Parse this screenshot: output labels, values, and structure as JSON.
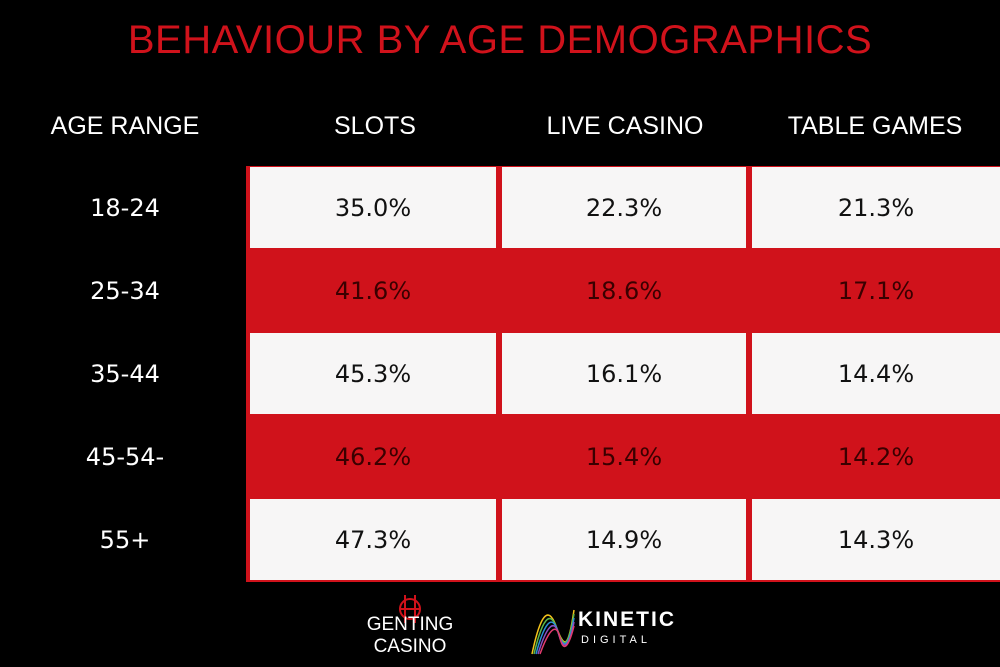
{
  "title": "BEHAVIOUR BY AGE DEMOGRAPHICS",
  "colors": {
    "accent": "#d0121b",
    "background": "#000000",
    "cell_light": "#f7f6f6"
  },
  "chart_data": {
    "type": "table",
    "title": "BEHAVIOUR BY AGE DEMOGRAPHICS",
    "columns": [
      "AGE RANGE",
      "SLOTS",
      "LIVE CASINO",
      "TABLE GAMES"
    ],
    "rows": [
      {
        "label": "18-24",
        "values": [
          "35.0%",
          "22.3%",
          "21.3%"
        ]
      },
      {
        "label": "25-34",
        "values": [
          "41.6%",
          "18.6%",
          "17.1%"
        ]
      },
      {
        "label": "35-44",
        "values": [
          "45.3%",
          "16.1%",
          "14.4%"
        ]
      },
      {
        "label": "45-54-",
        "values": [
          "46.2%",
          "15.4%",
          "14.2%"
        ]
      },
      {
        "label": "55+",
        "values": [
          "47.3%",
          "14.9%",
          "14.3%"
        ]
      }
    ]
  },
  "footer": {
    "genting": {
      "name": "GENTING CASINO",
      "icon": "genting-emblem-icon"
    },
    "kinetic": {
      "name": "KINETIC",
      "sub": "DIGITAL",
      "icon": "kinetic-wave-icon"
    }
  }
}
